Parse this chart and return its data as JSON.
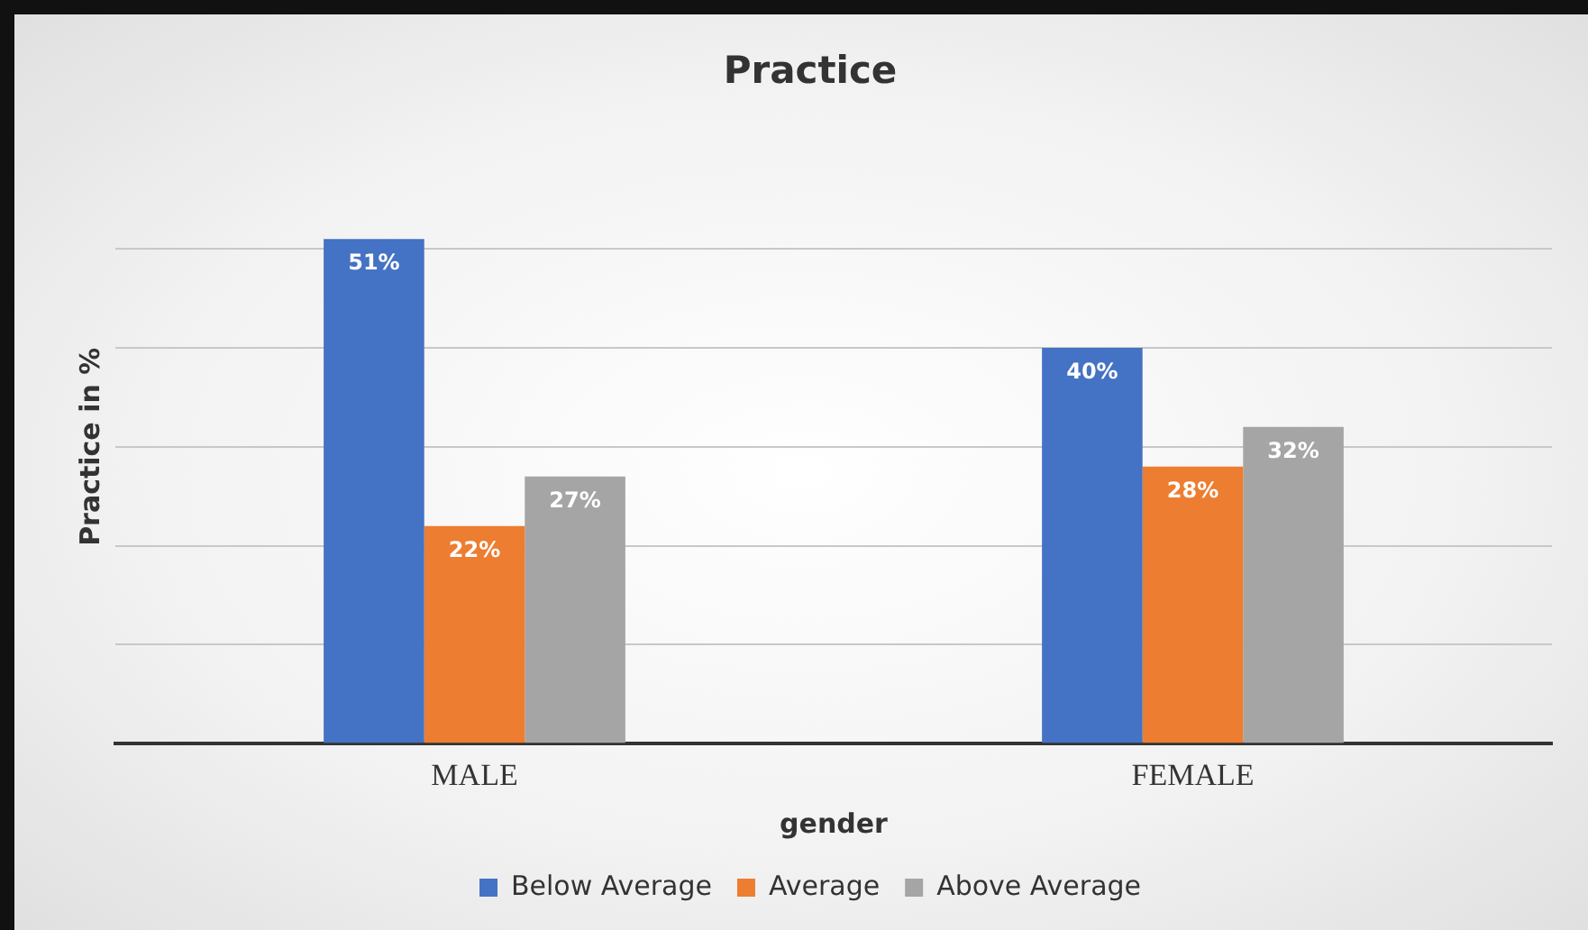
{
  "chart_data": {
    "type": "bar",
    "title": "Practice",
    "xlabel": "gender",
    "ylabel": "Practice in %",
    "categories": [
      "MALE",
      "FEMALE"
    ],
    "series": [
      {
        "name": "Below Average",
        "color": "#4472c4",
        "values": [
          51,
          40
        ],
        "value_labels": [
          "51%",
          "40%"
        ]
      },
      {
        "name": "Average",
        "color": "#ed7d31",
        "values": [
          22,
          28
        ],
        "value_labels": [
          "22%",
          "28%"
        ]
      },
      {
        "name": "Above Average",
        "color": "#a5a5a5",
        "values": [
          27,
          32
        ],
        "value_labels": [
          "27%",
          "32%"
        ]
      }
    ],
    "yticks": [
      {
        "value": 0,
        "label": null
      },
      {
        "value": 10,
        "label": null
      },
      {
        "value": 20,
        "label": null
      },
      {
        "value": 30,
        "label": null
      },
      {
        "value": 40,
        "label": null
      },
      {
        "value": 50,
        "label": null
      }
    ],
    "grid": "y",
    "legend": "bottom",
    "tick_labels": "x"
  }
}
